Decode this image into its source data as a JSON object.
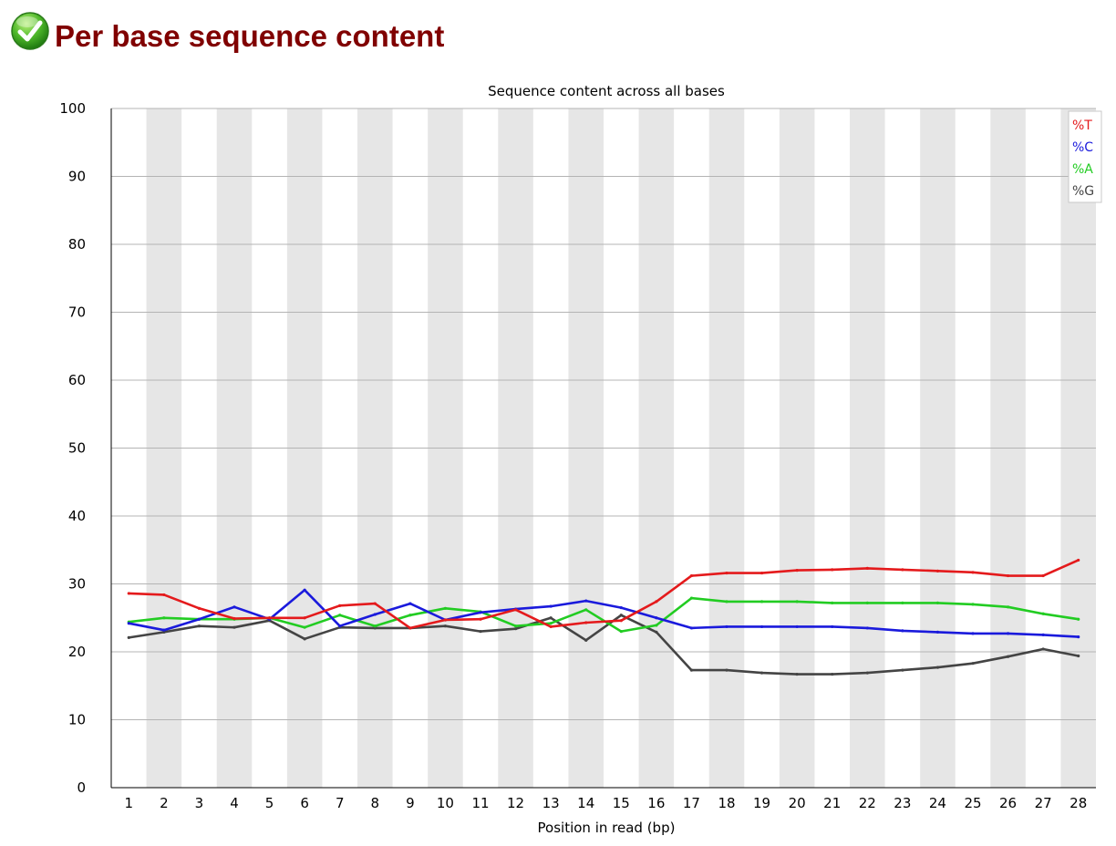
{
  "header": {
    "status": "pass",
    "title": "Per base sequence content"
  },
  "chart_data": {
    "type": "line",
    "title": "Sequence content across all bases",
    "xlabel": "Position in read (bp)",
    "ylabel": "",
    "ylim": [
      0,
      100
    ],
    "yticks": [
      0,
      10,
      20,
      30,
      40,
      50,
      60,
      70,
      80,
      90,
      100
    ],
    "categories": [
      "1",
      "2",
      "3",
      "4",
      "5",
      "6",
      "7",
      "8",
      "9",
      "10",
      "11",
      "12",
      "13",
      "14",
      "15",
      "16",
      "17",
      "18",
      "19",
      "20",
      "21",
      "22",
      "23",
      "24",
      "25",
      "26",
      "27",
      "28"
    ],
    "grid": true,
    "legend": "top-right",
    "series": [
      {
        "name": "%T",
        "color": "#e41a1c",
        "values": [
          28.6,
          28.4,
          26.4,
          24.9,
          25.0,
          25.0,
          26.8,
          27.1,
          23.5,
          24.7,
          24.8,
          26.2,
          23.7,
          24.3,
          24.6,
          27.4,
          31.2,
          31.6,
          31.6,
          32.0,
          32.1,
          32.3,
          32.1,
          31.9,
          31.7,
          31.2,
          31.2,
          33.5
        ]
      },
      {
        "name": "%C",
        "color": "#1a1adc",
        "values": [
          24.2,
          23.2,
          24.8,
          26.6,
          24.8,
          29.1,
          23.8,
          25.5,
          27.1,
          24.7,
          25.8,
          26.3,
          26.7,
          27.5,
          26.5,
          25.0,
          23.5,
          23.7,
          23.7,
          23.7,
          23.7,
          23.5,
          23.1,
          22.9,
          22.7,
          22.7,
          22.5,
          22.2
        ]
      },
      {
        "name": "%A",
        "color": "#22cc22",
        "values": [
          24.4,
          25.0,
          24.8,
          24.8,
          25.0,
          23.6,
          25.4,
          23.8,
          25.4,
          26.4,
          25.9,
          23.8,
          24.2,
          26.2,
          23.0,
          23.9,
          27.9,
          27.4,
          27.4,
          27.4,
          27.2,
          27.2,
          27.2,
          27.2,
          27.0,
          26.6,
          25.6,
          24.8
        ]
      },
      {
        "name": "%G",
        "color": "#444444",
        "values": [
          22.1,
          22.9,
          23.8,
          23.6,
          24.6,
          21.9,
          23.6,
          23.5,
          23.5,
          23.8,
          23.0,
          23.4,
          25.0,
          21.7,
          25.4,
          22.9,
          17.3,
          17.3,
          16.9,
          16.7,
          16.7,
          16.9,
          17.3,
          17.7,
          18.3,
          19.3,
          20.4,
          19.4
        ]
      }
    ]
  }
}
